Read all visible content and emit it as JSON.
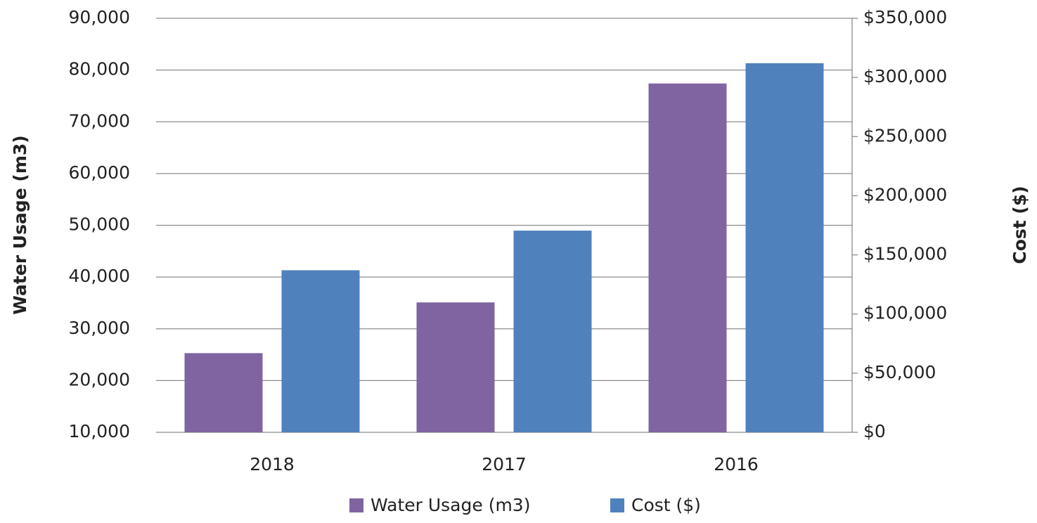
{
  "chart_data": {
    "type": "bar",
    "categories": [
      "2018",
      "2017",
      "2016"
    ],
    "y_label": "Water Usage (m3)",
    "y2_label": "Cost ($)",
    "series": [
      {
        "name": "Water Usage (m3)",
        "color": "#8064a2",
        "values": [
          25300,
          35100,
          77400
        ]
      },
      {
        "name": "Cost ($)",
        "color": "#4f81bd",
        "axis": "y2",
        "values": [
          137000,
          170500,
          312000
        ]
      }
    ],
    "ylim": [
      10000,
      90000
    ],
    "yticks": [
      {
        "value": 10000,
        "label": "10,000"
      },
      {
        "value": 20000,
        "label": "20,000"
      },
      {
        "value": 30000,
        "label": "30,000"
      },
      {
        "value": 40000,
        "label": "40,000"
      },
      {
        "value": 50000,
        "label": "50,000"
      },
      {
        "value": 60000,
        "label": "60,000"
      },
      {
        "value": 70000,
        "label": "70,000"
      },
      {
        "value": 80000,
        "label": "80,000"
      },
      {
        "value": 90000,
        "label": "90,000"
      }
    ],
    "y2lim": [
      0,
      350000
    ],
    "y2ticks": [
      {
        "value": 0,
        "label": "$0"
      },
      {
        "value": 50000,
        "label": "$50,000"
      },
      {
        "value": 100000,
        "label": "$100,000"
      },
      {
        "value": 150000,
        "label": "$150,000"
      },
      {
        "value": 200000,
        "label": "$200,000"
      },
      {
        "value": 250000,
        "label": "$250,000"
      },
      {
        "value": 300000,
        "label": "$300,000"
      },
      {
        "value": 350000,
        "label": "$350,000"
      }
    ],
    "grid": true,
    "legend": "bottom"
  }
}
